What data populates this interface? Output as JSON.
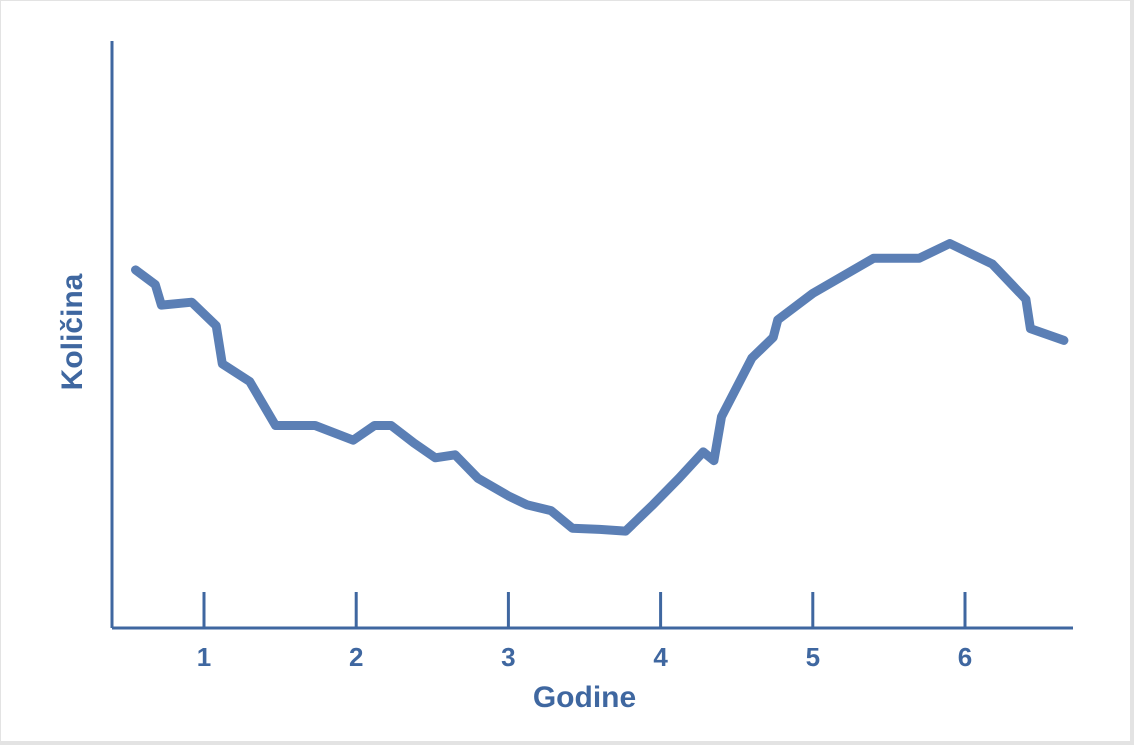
{
  "chart_data": {
    "type": "line",
    "title": "",
    "xlabel": "Godine",
    "ylabel": "Količina",
    "xlim": [
      0.4,
      6.7
    ],
    "ylim": [
      0,
      100
    ],
    "xticks": [
      "1",
      "2",
      "3",
      "4",
      "5",
      "6"
    ],
    "yticks": [],
    "grid": false,
    "legend": "none",
    "colors": {
      "line": "#5b7fb5",
      "axis": "#3f67a0",
      "text": "#3f67a0"
    },
    "series": [
      {
        "x": [
          0.55,
          0.68,
          0.72,
          0.92,
          1.08,
          1.12,
          1.3,
          1.47,
          1.73,
          1.98,
          2.12,
          2.23,
          2.38,
          2.52,
          2.65,
          2.8,
          3.0,
          3.12,
          3.28,
          3.42,
          3.6,
          3.77,
          3.95,
          4.12,
          4.28,
          4.35,
          4.4,
          4.6,
          4.74,
          4.77,
          5.0,
          5.4,
          5.7,
          5.9,
          6.18,
          6.4,
          6.43,
          6.65
        ],
        "y": [
          61,
          58.5,
          55,
          55.5,
          51.5,
          45,
          42,
          34.5,
          34.5,
          32,
          34.5,
          34.5,
          31.5,
          29,
          29.5,
          25.5,
          22.5,
          21,
          20,
          17,
          16.8,
          16.5,
          21,
          25.5,
          30,
          28.5,
          36,
          46,
          49.5,
          52.5,
          57,
          63,
          63,
          65.5,
          62,
          56,
          51,
          49
        ]
      }
    ]
  }
}
